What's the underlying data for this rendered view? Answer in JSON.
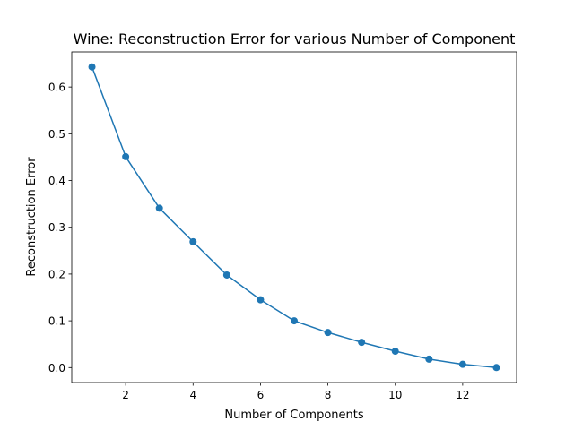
{
  "chart_data": {
    "type": "line",
    "title": "Wine: Reconstruction Error for various Number of Component",
    "xlabel": "Number of Components",
    "ylabel": "Reconstruction Error",
    "x": [
      1,
      2,
      3,
      4,
      5,
      6,
      7,
      8,
      9,
      10,
      11,
      12,
      13
    ],
    "series": [
      {
        "values": [
          0.643,
          0.451,
          0.341,
          0.269,
          0.198,
          0.145,
          0.1,
          0.075,
          0.054,
          0.035,
          0.018,
          0.007,
          0.0
        ],
        "color": "#1f77b4",
        "marker": "circle"
      }
    ],
    "xlim": [
      0.4,
      13.6
    ],
    "ylim": [
      -0.032,
      0.675
    ],
    "xticks": [
      2,
      4,
      6,
      8,
      10,
      12
    ],
    "xtick_labels": [
      "2",
      "4",
      "6",
      "8",
      "10",
      "12"
    ],
    "yticks": [
      0.0,
      0.1,
      0.2,
      0.3,
      0.4,
      0.5,
      0.6
    ],
    "ytick_labels": [
      "0.0",
      "0.1",
      "0.2",
      "0.3",
      "0.4",
      "0.5",
      "0.6"
    ],
    "grid": false,
    "legend": false
  }
}
